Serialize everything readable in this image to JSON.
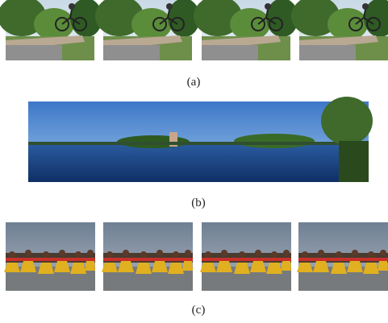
{
  "figure": {
    "panels": [
      {
        "caption": "(a)"
      },
      {
        "caption": "(b)"
      },
      {
        "caption": "(c)"
      }
    ]
  }
}
